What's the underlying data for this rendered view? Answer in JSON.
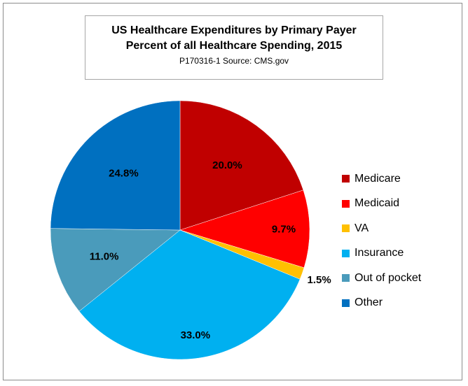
{
  "chart_data": {
    "type": "pie",
    "title": "US Healthcare Expenditures  by Primary Payer",
    "subtitle": "Percent of all Healthcare Spending, 2015",
    "source": "P170316-1 Source: CMS.gov",
    "slices": [
      {
        "name": "Medicare",
        "value": 20.0,
        "label": "20.0%",
        "color": "#c00000"
      },
      {
        "name": "Medicaid",
        "value": 9.7,
        "label": "9.7%",
        "color": "#ff0000"
      },
      {
        "name": "VA",
        "value": 1.5,
        "label": "1.5%",
        "color": "#ffc000"
      },
      {
        "name": "Insurance",
        "value": 33.0,
        "label": "33.0%",
        "color": "#00b0f0"
      },
      {
        "name": "Out of pocket",
        "value": 11.0,
        "label": "11.0%",
        "color": "#4a9bbb"
      },
      {
        "name": "Other",
        "value": 24.8,
        "label": "24.8%",
        "color": "#0070c0"
      }
    ],
    "legend_position": "right"
  }
}
